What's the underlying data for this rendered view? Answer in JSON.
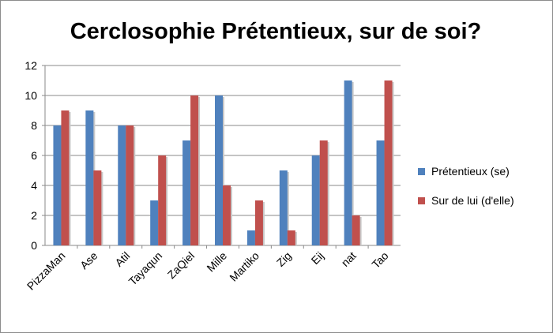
{
  "chart_data": {
    "type": "bar",
    "title": "Cerclosophie Prétentieux, sur de soi?",
    "categories": [
      "PizzaMan",
      "Ase",
      "Atil",
      "Tayaqun",
      "ZaQiel",
      "Mille",
      "Martiko",
      "Zig",
      "Eij",
      "nat",
      "Tao"
    ],
    "series": [
      {
        "name": "Prétentieux (se)",
        "color": "#4F81BD",
        "values": [
          8,
          9,
          8,
          3,
          7,
          10,
          1,
          5,
          6,
          11,
          7
        ]
      },
      {
        "name": "Sur de lui (d'elle)",
        "color": "#C0504D",
        "values": [
          9,
          5,
          8,
          6,
          10,
          4,
          3,
          1,
          7,
          2,
          11
        ]
      }
    ],
    "ylim": [
      0,
      12
    ],
    "yticks": [
      0,
      2,
      4,
      6,
      8,
      10,
      12
    ],
    "grid": true,
    "legend_position": "right",
    "xlabel": "",
    "ylabel": ""
  }
}
